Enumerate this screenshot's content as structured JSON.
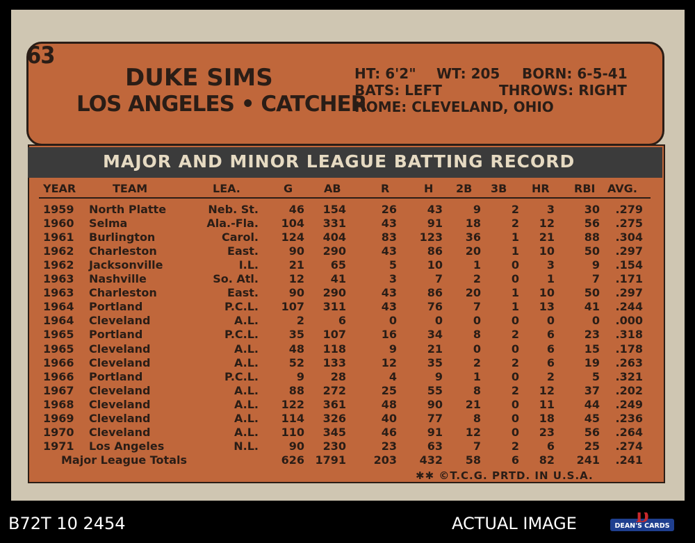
{
  "card": {
    "number": "63",
    "name": "DUKE SIMS",
    "team_position": "LOS ANGELES • CATCHER",
    "bio": {
      "ht": "HT: 6'2\"",
      "wt": "WT: 205",
      "born": "BORN: 6-5-41",
      "bats": "BATS: LEFT",
      "throws": "THROWS: RIGHT",
      "home": "HOME: CLEVELAND, OHIO"
    },
    "record_title": "MAJOR AND MINOR LEAGUE BATTING RECORD",
    "columns": [
      "YEAR",
      "TEAM",
      "LEA.",
      "G",
      "AB",
      "R",
      "H",
      "2B",
      "3B",
      "HR",
      "RBI",
      "AVG."
    ],
    "rows": [
      [
        "1959",
        "North Platte",
        "Neb. St.",
        "46",
        "154",
        "26",
        "43",
        "9",
        "2",
        "3",
        "30",
        ".279"
      ],
      [
        "1960",
        "Selma",
        "Ala.-Fla.",
        "104",
        "331",
        "43",
        "91",
        "18",
        "2",
        "12",
        "56",
        ".275"
      ],
      [
        "1961",
        "Burlington",
        "Carol.",
        "124",
        "404",
        "83",
        "123",
        "36",
        "1",
        "21",
        "88",
        ".304"
      ],
      [
        "1962",
        "Charleston",
        "East.",
        "90",
        "290",
        "43",
        "86",
        "20",
        "1",
        "10",
        "50",
        ".297"
      ],
      [
        "1962",
        "Jacksonville",
        "I.L.",
        "21",
        "65",
        "5",
        "10",
        "1",
        "0",
        "3",
        "9",
        ".154"
      ],
      [
        "1963",
        "Nashville",
        "So. Atl.",
        "12",
        "41",
        "3",
        "7",
        "2",
        "0",
        "1",
        "7",
        ".171"
      ],
      [
        "1963",
        "Charleston",
        "East.",
        "90",
        "290",
        "43",
        "86",
        "20",
        "1",
        "10",
        "50",
        ".297"
      ],
      [
        "1964",
        "Portland",
        "P.C.L.",
        "107",
        "311",
        "43",
        "76",
        "7",
        "1",
        "13",
        "41",
        ".244"
      ],
      [
        "1964",
        "Cleveland",
        "A.L.",
        "2",
        "6",
        "0",
        "0",
        "0",
        "0",
        "0",
        "0",
        ".000"
      ],
      [
        "1965",
        "Portland",
        "P.C.L.",
        "35",
        "107",
        "16",
        "34",
        "8",
        "2",
        "6",
        "23",
        ".318"
      ],
      [
        "1965",
        "Cleveland",
        "A.L.",
        "48",
        "118",
        "9",
        "21",
        "0",
        "0",
        "6",
        "15",
        ".178"
      ],
      [
        "1966",
        "Cleveland",
        "A.L.",
        "52",
        "133",
        "12",
        "35",
        "2",
        "2",
        "6",
        "19",
        ".263"
      ],
      [
        "1966",
        "Portland",
        "P.C.L.",
        "9",
        "28",
        "4",
        "9",
        "1",
        "0",
        "2",
        "5",
        ".321"
      ],
      [
        "1967",
        "Cleveland",
        "A.L.",
        "88",
        "272",
        "25",
        "55",
        "8",
        "2",
        "12",
        "37",
        ".202"
      ],
      [
        "1968",
        "Cleveland",
        "A.L.",
        "122",
        "361",
        "48",
        "90",
        "21",
        "0",
        "11",
        "44",
        ".249"
      ],
      [
        "1969",
        "Cleveland",
        "A.L.",
        "114",
        "326",
        "40",
        "77",
        "8",
        "0",
        "18",
        "45",
        ".236"
      ],
      [
        "1970",
        "Cleveland",
        "A.L.",
        "110",
        "345",
        "46",
        "91",
        "12",
        "0",
        "23",
        "56",
        ".264"
      ],
      [
        "1971",
        "Los Angeles",
        "N.L.",
        "90",
        "230",
        "23",
        "63",
        "7",
        "2",
        "6",
        "25",
        ".274"
      ]
    ],
    "totals": [
      "Major League Totals",
      "626",
      "1791",
      "203",
      "432",
      "58",
      "6",
      "82",
      "241",
      ".241"
    ],
    "copyright": "✱✱ ©T.C.G. PRTD. IN U.S.A."
  },
  "listing": {
    "code": "B72T 10 2454",
    "label": "ACTUAL IMAGE",
    "logo_text": "DEAN'S CARDS",
    "logo_letter": "D"
  },
  "colors": {
    "plaque": "#c0673b",
    "ink": "#2a1d16",
    "cardstock": "#cfc6b2",
    "title_bar": "#3b3b3b"
  }
}
